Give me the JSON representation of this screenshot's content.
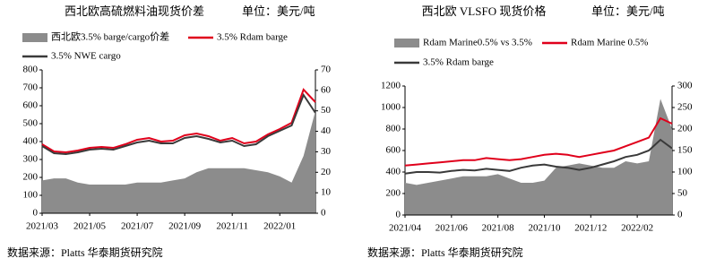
{
  "chart_data": [
    {
      "type": "line",
      "title": "西北欧高硫燃料油现货价差",
      "unit": "单位：美元/吨",
      "source": "数据来源：Platts 华泰期货研究院",
      "categories": [
        "2021/03",
        null,
        null,
        null,
        "2021/05",
        null,
        null,
        null,
        "2021/07",
        null,
        null,
        null,
        "2021/09",
        null,
        null,
        null,
        "2021/11",
        null,
        null,
        null,
        "2022/01",
        null,
        null,
        null
      ],
      "ylim": [
        0,
        800
      ],
      "yticks": [
        0,
        100,
        200,
        300,
        400,
        500,
        600,
        700,
        800
      ],
      "y2lim": [
        0,
        70
      ],
      "y2ticks": [
        0,
        10,
        20,
        30,
        40,
        50,
        60,
        70
      ],
      "series": [
        {
          "name": "西北欧3.5% barge/cargo价差",
          "color": "#8c8c8c",
          "kind": "area",
          "axis": "y2",
          "values": [
            16,
            17,
            17,
            15,
            14,
            14,
            14,
            14,
            15,
            15,
            15,
            16,
            17,
            20,
            22,
            22,
            22,
            22,
            21,
            20,
            18,
            15,
            28,
            50
          ]
        },
        {
          "name": "3.5% Rdam barge",
          "color": "#e0001b",
          "kind": "line",
          "values": [
            385,
            345,
            340,
            350,
            365,
            370,
            365,
            385,
            410,
            420,
            400,
            405,
            435,
            445,
            430,
            405,
            420,
            390,
            400,
            440,
            470,
            505,
            690,
            620
          ]
        },
        {
          "name": "3.5% NWE cargo",
          "color": "#3a3a3a",
          "kind": "line",
          "values": [
            375,
            335,
            330,
            340,
            355,
            360,
            355,
            375,
            395,
            405,
            390,
            390,
            420,
            430,
            415,
            395,
            405,
            375,
            385,
            430,
            460,
            490,
            660,
            560
          ]
        }
      ]
    },
    {
      "type": "line",
      "title": "西北欧 VLSFO 现货价格",
      "unit": "单位：美元/吨",
      "source": "数据来源：Platts 华泰期货研究院",
      "categories": [
        "2021/04",
        null,
        null,
        null,
        "2021/06",
        null,
        null,
        null,
        "2021/08",
        null,
        null,
        null,
        "2021/10",
        null,
        null,
        null,
        "2021/12",
        null,
        null,
        null,
        "2022/02",
        null,
        null,
        null
      ],
      "ylim": [
        0,
        1200
      ],
      "yticks": [
        0,
        200,
        400,
        600,
        800,
        1000,
        1200
      ],
      "y2lim": [
        0,
        300
      ],
      "y2ticks": [
        0,
        50,
        100,
        150,
        200,
        250,
        300
      ],
      "series": [
        {
          "name": "Rdam Marine0.5% vs 3.5%",
          "color": "#8c8c8c",
          "kind": "area",
          "axis": "y2",
          "values": [
            75,
            70,
            75,
            80,
            85,
            90,
            90,
            90,
            95,
            85,
            75,
            75,
            80,
            110,
            115,
            120,
            115,
            110,
            110,
            125,
            120,
            125,
            270,
            200
          ]
        },
        {
          "name": "Rdam Marine 0.5%",
          "color": "#e0001b",
          "kind": "line",
          "values": [
            460,
            470,
            480,
            490,
            500,
            510,
            510,
            530,
            520,
            510,
            520,
            540,
            560,
            570,
            560,
            540,
            560,
            580,
            600,
            640,
            680,
            720,
            900,
            850
          ]
        },
        {
          "name": "3.5% Rdam barge",
          "color": "#3a3a3a",
          "kind": "line",
          "values": [
            385,
            400,
            400,
            395,
            410,
            420,
            415,
            430,
            420,
            410,
            440,
            460,
            470,
            450,
            440,
            420,
            440,
            470,
            500,
            540,
            560,
            600,
            700,
            620
          ]
        }
      ]
    }
  ]
}
